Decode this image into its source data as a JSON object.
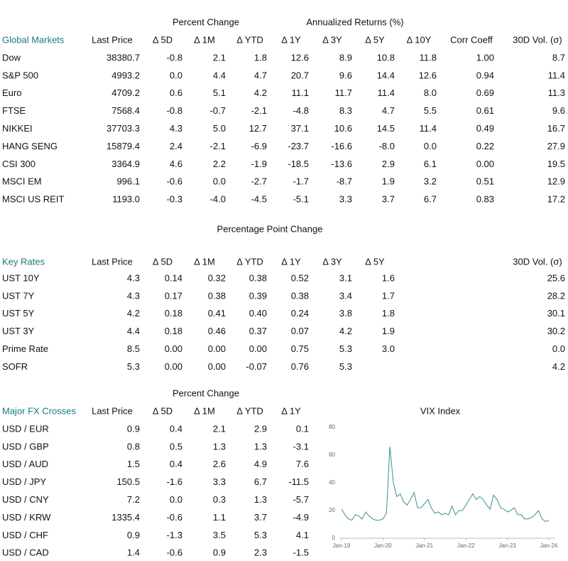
{
  "global_markets": {
    "group_headers": [
      "Percent Change",
      "Annualized Returns (%)"
    ],
    "columns": [
      "Global Markets",
      "Last Price",
      "Δ 5D",
      "Δ 1M",
      "Δ YTD",
      "Δ 1Y",
      "Δ 3Y",
      "Δ 5Y",
      "Δ 10Y",
      "Corr Coeff",
      "30D Vol. (σ)"
    ],
    "rows": [
      [
        "Dow",
        "38380.7",
        "-0.8",
        "2.1",
        "1.8",
        "12.6",
        "8.9",
        "10.8",
        "11.8",
        "1.00",
        "8.7"
      ],
      [
        "S&P 500",
        "4993.2",
        "0.0",
        "4.4",
        "4.7",
        "20.7",
        "9.6",
        "14.4",
        "12.6",
        "0.94",
        "11.4"
      ],
      [
        "Euro",
        "4709.2",
        "0.6",
        "5.1",
        "4.2",
        "11.1",
        "11.7",
        "11.4",
        "8.0",
        "0.69",
        "11.3"
      ],
      [
        "FTSE",
        "7568.4",
        "-0.8",
        "-0.7",
        "-2.1",
        "-4.8",
        "8.3",
        "4.7",
        "5.5",
        "0.61",
        "9.6"
      ],
      [
        "NIKKEI",
        "37703.3",
        "4.3",
        "5.0",
        "12.7",
        "37.1",
        "10.6",
        "14.5",
        "11.4",
        "0.49",
        "16.7"
      ],
      [
        "HANG SENG",
        "15879.4",
        "2.4",
        "-2.1",
        "-6.9",
        "-23.7",
        "-16.6",
        "-8.0",
        "0.0",
        "0.22",
        "27.9"
      ],
      [
        "CSI 300",
        "3364.9",
        "4.6",
        "2.2",
        "-1.9",
        "-18.5",
        "-13.6",
        "2.9",
        "6.1",
        "0.00",
        "19.5"
      ],
      [
        "MSCI EM",
        "996.1",
        "-0.6",
        "0.0",
        "-2.7",
        "-1.7",
        "-8.7",
        "1.9",
        "3.2",
        "0.51",
        "12.9"
      ],
      [
        "MSCI US REIT",
        "1193.0",
        "-0.3",
        "-4.0",
        "-4.5",
        "-5.1",
        "3.3",
        "3.7",
        "6.7",
        "0.83",
        "17.2"
      ]
    ]
  },
  "key_rates": {
    "group_headers": [
      "Percentage Point Change"
    ],
    "columns": [
      "Key Rates",
      "Last Price",
      "Δ 5D",
      "Δ 1M",
      "Δ YTD",
      "Δ 1Y",
      "Δ 3Y",
      "Δ 5Y",
      "30D Vol. (σ)"
    ],
    "rows": [
      [
        "UST 10Y",
        "4.3",
        "0.14",
        "0.32",
        "0.38",
        "0.52",
        "3.1",
        "1.6",
        "25.6"
      ],
      [
        "UST 7Y",
        "4.3",
        "0.17",
        "0.38",
        "0.39",
        "0.38",
        "3.4",
        "1.7",
        "28.2"
      ],
      [
        "UST 5Y",
        "4.2",
        "0.18",
        "0.41",
        "0.40",
        "0.24",
        "3.8",
        "1.8",
        "30.1"
      ],
      [
        "UST 3Y",
        "4.4",
        "0.18",
        "0.46",
        "0.37",
        "0.07",
        "4.2",
        "1.9",
        "30.2"
      ],
      [
        "Prime Rate",
        "8.5",
        "0.00",
        "0.00",
        "0.00",
        "0.75",
        "5.3",
        "3.0",
        "0.0"
      ],
      [
        "SOFR",
        "5.3",
        "0.00",
        "0.00",
        "-0.07",
        "0.76",
        "5.3",
        null,
        "4.2"
      ]
    ]
  },
  "fx_crosses": {
    "group_headers": [
      "Percent Change"
    ],
    "columns": [
      "Major FX Crosses",
      "Last Price",
      "Δ 5D",
      "Δ 1M",
      "Δ YTD",
      "Δ 1Y"
    ],
    "rows": [
      [
        "USD / EUR",
        "0.9",
        "0.4",
        "2.1",
        "2.9",
        "0.1"
      ],
      [
        "USD / GBP",
        "0.8",
        "0.5",
        "1.3",
        "1.3",
        "-3.1"
      ],
      [
        "USD / AUD",
        "1.5",
        "0.4",
        "2.6",
        "4.9",
        "7.6"
      ],
      [
        "USD / JPY",
        "150.5",
        "-1.6",
        "3.3",
        "6.7",
        "-11.5"
      ],
      [
        "USD / CNY",
        "7.2",
        "0.0",
        "0.3",
        "1.3",
        "-5.7"
      ],
      [
        "USD / KRW",
        "1335.4",
        "-0.6",
        "1.1",
        "3.7",
        "-4.9"
      ],
      [
        "USD / CHF",
        "0.9",
        "-1.3",
        "3.5",
        "5.3",
        "4.1"
      ],
      [
        "USD / CAD",
        "1.4",
        "-0.6",
        "0.9",
        "2.3",
        "-1.5"
      ]
    ]
  },
  "chart_data": {
    "type": "line",
    "title": "VIX Index",
    "x": [
      "2019-01",
      "2019-02",
      "2019-03",
      "2019-04",
      "2019-05",
      "2019-06",
      "2019-07",
      "2019-08",
      "2019-09",
      "2019-10",
      "2019-11",
      "2019-12",
      "2020-01",
      "2020-02",
      "2020-03",
      "2020-04",
      "2020-05",
      "2020-06",
      "2020-07",
      "2020-08",
      "2020-09",
      "2020-10",
      "2020-11",
      "2020-12",
      "2021-01",
      "2021-02",
      "2021-03",
      "2021-04",
      "2021-05",
      "2021-06",
      "2021-07",
      "2021-08",
      "2021-09",
      "2021-10",
      "2021-11",
      "2021-12",
      "2022-01",
      "2022-02",
      "2022-03",
      "2022-04",
      "2022-05",
      "2022-06",
      "2022-07",
      "2022-08",
      "2022-09",
      "2022-10",
      "2022-11",
      "2022-12",
      "2023-01",
      "2023-02",
      "2023-03",
      "2023-04",
      "2023-05",
      "2023-06",
      "2023-07",
      "2023-08",
      "2023-09",
      "2023-10",
      "2023-11",
      "2023-12",
      "2024-01"
    ],
    "series": [
      {
        "name": "VIX",
        "color": "#3a8f8f",
        "values": [
          21,
          17,
          14,
          13,
          17,
          16,
          14,
          19,
          16,
          14,
          13,
          13,
          14,
          18,
          66,
          40,
          30,
          32,
          26,
          24,
          28,
          33,
          22,
          22,
          25,
          28,
          22,
          18,
          19,
          17,
          18,
          17,
          23,
          17,
          20,
          20,
          24,
          28,
          32,
          28,
          30,
          28,
          24,
          21,
          31,
          28,
          22,
          21,
          19,
          20,
          22,
          17,
          17,
          14,
          14,
          15,
          17,
          20,
          14,
          12,
          13
        ]
      }
    ],
    "xlim": [
      "2019-01",
      "2024-01"
    ],
    "xticks": [
      {
        "value": "2019-01",
        "label": "Jan-19"
      },
      {
        "value": "2020-01",
        "label": "Jan-20"
      },
      {
        "value": "2021-01",
        "label": "Jan-21"
      },
      {
        "value": "2022-01",
        "label": "Jan-22"
      },
      {
        "value": "2023-01",
        "label": "Jan-23"
      },
      {
        "value": "2024-01",
        "label": "Jan-24"
      }
    ],
    "ylim": [
      0,
      80
    ],
    "yticks": [
      0,
      20,
      40,
      60,
      80
    ]
  }
}
